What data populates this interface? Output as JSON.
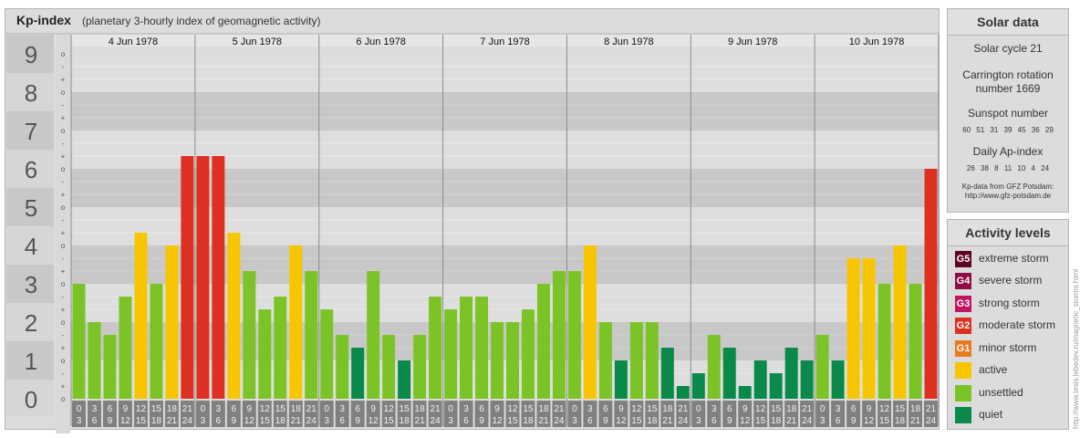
{
  "header": {
    "title": "Kp-index",
    "subtitle": "(planetary 3-hourly index of geomagnetic activity)"
  },
  "chart_data": {
    "type": "bar",
    "ylim": [
      0,
      9
    ],
    "y_ticks": [
      "0",
      "1",
      "2",
      "3",
      "4",
      "5",
      "6",
      "7",
      "8",
      "9"
    ],
    "minor_ticks": [
      "o",
      "+",
      "-",
      "o",
      "+",
      "-",
      "o",
      "+",
      "-",
      "o",
      "+",
      "-",
      "o",
      "+",
      "-",
      "o",
      "+",
      "-",
      "o",
      "+",
      "-",
      "o",
      "+",
      "-",
      "o",
      "+",
      "-",
      "o"
    ],
    "days": [
      "4 Jun 1978",
      "5 Jun 1978",
      "6 Jun 1978",
      "7 Jun 1978",
      "8 Jun 1978",
      "9 Jun 1978",
      "10 Jun 1978"
    ],
    "interval_labels": [
      [
        "0",
        "3"
      ],
      [
        "3",
        "6"
      ],
      [
        "6",
        "9"
      ],
      [
        "9",
        "12"
      ],
      [
        "12",
        "15"
      ],
      [
        "15",
        "18"
      ],
      [
        "18",
        "21"
      ],
      [
        "21",
        "24"
      ]
    ],
    "values": [
      [
        3.0,
        2.0,
        1.667,
        2.667,
        4.333,
        3.0,
        4.0,
        6.333
      ],
      [
        6.333,
        6.333,
        4.333,
        3.333,
        2.333,
        2.667,
        4.0,
        3.333
      ],
      [
        2.333,
        1.667,
        1.333,
        3.333,
        1.667,
        1.0,
        1.667,
        2.667
      ],
      [
        2.333,
        2.667,
        2.667,
        2.0,
        2.0,
        2.333,
        3.0,
        3.333
      ],
      [
        3.333,
        4.0,
        2.0,
        1.0,
        2.0,
        2.0,
        1.333,
        0.333
      ],
      [
        0.667,
        1.667,
        1.333,
        0.333,
        1.0,
        0.667,
        1.333,
        1.0
      ],
      [
        1.667,
        1.0,
        3.667,
        3.667,
        3.0,
        4.0,
        3.0,
        6.0
      ]
    ],
    "colors": {
      "quiet": "#0a8a4a",
      "unsettled": "#7cc328",
      "active": "#f7c600",
      "minor": "#e87a22",
      "moderate": "#dd3022",
      "strong": "#c21463",
      "severe": "#8e0c47",
      "extreme": "#5e0621"
    }
  },
  "solar": {
    "header": "Solar data",
    "cycle": "Solar cycle 21",
    "carrington_1": "Carrington rotation",
    "carrington_2": "number 1669",
    "sunspot_label": "Sunspot number",
    "sunspot_values": "60 51 31 39 45 36 29",
    "ap_label": "Daily Ap-index",
    "ap_values": "26 38 8 11 10 4 24",
    "source_1": "Kp-data from GFZ Potsdam:",
    "source_2": "http://www.gfz-potsdam.de"
  },
  "activity": {
    "header": "Activity levels",
    "levels": [
      {
        "badge": "G5",
        "label": "extreme storm",
        "color": "#5e0621"
      },
      {
        "badge": "G4",
        "label": "severe storm",
        "color": "#8e0c47"
      },
      {
        "badge": "G3",
        "label": "strong storm",
        "color": "#c21463"
      },
      {
        "badge": "G2",
        "label": "moderate storm",
        "color": "#dd3022"
      },
      {
        "badge": "G1",
        "label": "minor storm",
        "color": "#e87a22"
      },
      {
        "badge": "",
        "label": "active",
        "color": "#f7c600"
      },
      {
        "badge": "",
        "label": "unsettled",
        "color": "#7cc328"
      },
      {
        "badge": "",
        "label": "quiet",
        "color": "#0a8a4a"
      }
    ]
  },
  "watermark": "http://www.tesis.lebedev.ru/magnetic_storms.html"
}
